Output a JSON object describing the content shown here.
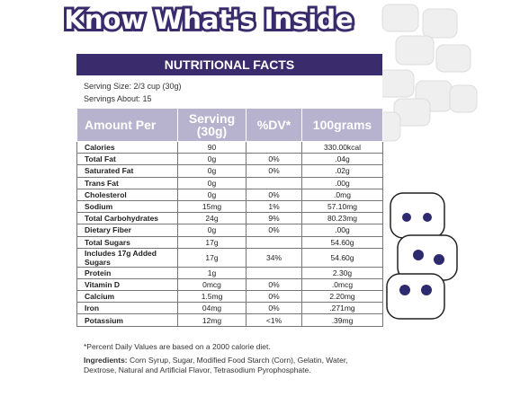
{
  "header": {
    "title": "Know What's Inside"
  },
  "panel": {
    "heading": "NUTRITIONAL FACTS",
    "serving_size": "Serving Size: 2/3 cup (30g)",
    "servings": "Servings About: 15"
  },
  "table": {
    "columns": [
      "Amount Per",
      "Serving (30g)",
      "%DV*",
      "100grams"
    ],
    "rows": [
      [
        "Calories",
        "90",
        null,
        "330.00kcal"
      ],
      [
        "Total Fat",
        "0g",
        "0%",
        ".04g"
      ],
      [
        "Saturated Fat",
        "0g",
        "0%",
        ".02g"
      ],
      [
        "Trans Fat",
        "0g",
        null,
        ".00g"
      ],
      [
        "Cholesterol",
        "0g",
        "0%",
        ".0mg"
      ],
      [
        "Sodium",
        "15mg",
        "1%",
        "57.10mg"
      ],
      [
        "Total Carbohydrates",
        "24g",
        "9%",
        "80.23mg"
      ],
      [
        "Dietary Fiber",
        "0g",
        "0%",
        ".00g"
      ],
      [
        "Total Sugars",
        "17g",
        null,
        "54.60g"
      ],
      [
        "Includes 17g Added Sugars",
        "17g",
        "34%",
        "54.60g"
      ],
      [
        "Protein",
        "1g",
        null,
        "2.30g"
      ],
      [
        "Vitamin D",
        "0mcg",
        "0%",
        ".0mcg"
      ],
      [
        "Calcium",
        "1.5mg",
        "0%",
        "2.20mg"
      ],
      [
        "Iron",
        "04mg",
        "0%",
        ".271mg"
      ],
      [
        "Potassium",
        "12mg",
        "<1%",
        ".39mg"
      ]
    ]
  },
  "footer": {
    "note": "*Percent Daily Values are based on a 2000 calorie diet.",
    "ingredients_label": "Ingredients:",
    "ingredients": "Corn Syrup, Sugar, Modified Food Starch (Corn), Gelatin, Water, Dextrose, Natural and Artificial Flavor, Tetrasodium Pyrophosphate."
  }
}
